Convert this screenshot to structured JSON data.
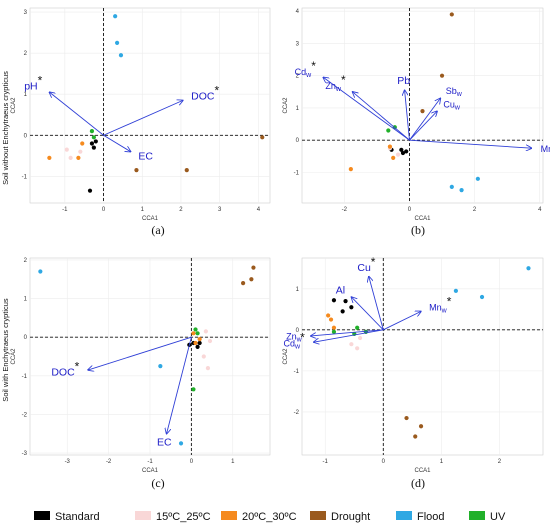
{
  "row_labels": [
    "Soil without Enchytraeus crypticus",
    "Soil with Enchytraeus crypticus"
  ],
  "colors": {
    "Standard": "#000000",
    "15ºC_25ºC": "#f9d7d7",
    "20ºC_30ºC": "#f58a1e",
    "Drought": "#9a5a1e",
    "Flood": "#2fa8e3",
    "UV": "#21b02a",
    "vector": "#2f3fd6"
  },
  "legend": [
    "Standard",
    "15ºC_25ºC",
    "20ºC_30ºC",
    "Drought",
    "Flood",
    "UV"
  ],
  "chart_data": [
    {
      "panel": "(a)",
      "type": "scatter",
      "xlabel": "CCA1",
      "ylabel": "CCA2",
      "xlim": [
        -1.9,
        4.3
      ],
      "ylim": [
        -1.65,
        3.1
      ],
      "xticks": [
        -1,
        0,
        1,
        2,
        3,
        4
      ],
      "yticks": [
        -1,
        0,
        1,
        2,
        3
      ],
      "points": [
        {
          "g": "Standard",
          "x": -0.3,
          "y": -0.2
        },
        {
          "g": "Standard",
          "x": -0.2,
          "y": -0.15
        },
        {
          "g": "Standard",
          "x": -0.25,
          "y": -0.3
        },
        {
          "g": "Standard",
          "x": -0.35,
          "y": -1.35
        },
        {
          "g": "15ºC_25ºC",
          "x": -0.95,
          "y": -0.35
        },
        {
          "g": "15ºC_25ºC",
          "x": -0.85,
          "y": -0.55
        },
        {
          "g": "15ºC_25ºC",
          "x": -0.6,
          "y": -0.4
        },
        {
          "g": "20ºC_30ºC",
          "x": -1.4,
          "y": -0.55
        },
        {
          "g": "20ºC_30ºC",
          "x": -0.65,
          "y": -0.55
        },
        {
          "g": "20ºC_30ºC",
          "x": -0.55,
          "y": -0.2
        },
        {
          "g": "Drought",
          "x": 0.85,
          "y": -0.85
        },
        {
          "g": "Drought",
          "x": 2.15,
          "y": -0.85
        },
        {
          "g": "Drought",
          "x": 4.1,
          "y": -0.05
        },
        {
          "g": "Flood",
          "x": 0.3,
          "y": 2.9
        },
        {
          "g": "Flood",
          "x": 0.35,
          "y": 2.25
        },
        {
          "g": "Flood",
          "x": 0.45,
          "y": 1.95
        },
        {
          "g": "UV",
          "x": -0.3,
          "y": 0.1
        },
        {
          "g": "UV",
          "x": -0.25,
          "y": -0.05
        }
      ],
      "vectors": [
        {
          "label": "pH",
          "sub": "",
          "star": true,
          "x": -1.4,
          "y": 1.05
        },
        {
          "label": "DOC",
          "sub": "",
          "star": true,
          "x": 2.05,
          "y": 0.85
        },
        {
          "label": "EC",
          "sub": "",
          "star": false,
          "x": 0.7,
          "y": -0.4
        }
      ]
    },
    {
      "panel": "(b)",
      "type": "scatter",
      "xlabel": "CCA1",
      "ylabel": "CCA2",
      "xlim": [
        -3.3,
        4.1
      ],
      "ylim": [
        -1.95,
        4.1
      ],
      "xticks": [
        -2,
        0,
        2,
        4
      ],
      "yticks": [
        -1,
        0,
        1,
        2,
        3,
        4
      ],
      "points": [
        {
          "g": "Standard",
          "x": -0.55,
          "y": -0.3
        },
        {
          "g": "Standard",
          "x": -0.25,
          "y": -0.3
        },
        {
          "g": "Standard",
          "x": -0.2,
          "y": -0.4
        },
        {
          "g": "Standard",
          "x": -0.1,
          "y": -0.35
        },
        {
          "g": "15ºC_25ºC",
          "x": -0.6,
          "y": -0.25
        },
        {
          "g": "15ºC_25ºC",
          "x": -0.35,
          "y": -0.45
        },
        {
          "g": "20ºC_30ºC",
          "x": -1.8,
          "y": -0.9
        },
        {
          "g": "20ºC_30ºC",
          "x": -0.6,
          "y": -0.2
        },
        {
          "g": "20ºC_30ºC",
          "x": -0.5,
          "y": -0.55
        },
        {
          "g": "Drought",
          "x": 0.4,
          "y": 0.9
        },
        {
          "g": "Drought",
          "x": 1.0,
          "y": 2.0
        },
        {
          "g": "Drought",
          "x": 1.3,
          "y": 3.9
        },
        {
          "g": "Flood",
          "x": 1.3,
          "y": -1.45
        },
        {
          "g": "Flood",
          "x": 1.6,
          "y": -1.55
        },
        {
          "g": "Flood",
          "x": 2.1,
          "y": -1.2
        },
        {
          "g": "UV",
          "x": -0.65,
          "y": 0.3
        },
        {
          "g": "UV",
          "x": -0.45,
          "y": 0.4
        }
      ],
      "vectors": [
        {
          "label": "Cd",
          "sub": "w",
          "star": true,
          "x": -2.65,
          "y": 1.95
        },
        {
          "label": "Zn",
          "sub": "w",
          "star": true,
          "x": -1.75,
          "y": 1.5
        },
        {
          "label": "Pb",
          "sub": "",
          "star": false,
          "x": -0.15,
          "y": 1.55
        },
        {
          "label": "Sb",
          "sub": "w",
          "star": false,
          "x": 0.95,
          "y": 1.3
        },
        {
          "label": "Cu",
          "sub": "w",
          "star": false,
          "x": 0.85,
          "y": 0.9
        },
        {
          "label": "Mn",
          "sub": "w",
          "star": true,
          "x": 3.75,
          "y": -0.25
        }
      ]
    },
    {
      "panel": "(c)",
      "type": "scatter",
      "xlabel": "CCA1",
      "ylabel": "CCA2",
      "xlim": [
        -3.9,
        1.9
      ],
      "ylim": [
        -3.05,
        2.05
      ],
      "xticks": [
        -3,
        -2,
        -1,
        0,
        1
      ],
      "yticks": [
        -3,
        -2,
        -1,
        0,
        1,
        2
      ],
      "points": [
        {
          "g": "Standard",
          "x": -0.05,
          "y": -0.2
        },
        {
          "g": "Standard",
          "x": 0.05,
          "y": -0.15
        },
        {
          "g": "Standard",
          "x": 0.15,
          "y": -0.25
        },
        {
          "g": "Standard",
          "x": 0.2,
          "y": -0.15
        },
        {
          "g": "15ºC_25ºC",
          "x": 0.35,
          "y": 0.15
        },
        {
          "g": "15ºC_25ºC",
          "x": 0.45,
          "y": -0.1
        },
        {
          "g": "15ºC_25ºC",
          "x": 0.3,
          "y": -0.5
        },
        {
          "g": "15ºC_25ºC",
          "x": 0.4,
          "y": -0.8
        },
        {
          "g": "20ºC_30ºC",
          "x": 0.05,
          "y": 0.1
        },
        {
          "g": "20ºC_30ºC",
          "x": 0.2,
          "y": -0.05
        },
        {
          "g": "20ºC_30ºC",
          "x": 0.1,
          "y": -0.15
        },
        {
          "g": "Drought",
          "x": 1.25,
          "y": 1.4
        },
        {
          "g": "Drought",
          "x": 1.45,
          "y": 1.5
        },
        {
          "g": "Drought",
          "x": 1.5,
          "y": 1.8
        },
        {
          "g": "Flood",
          "x": -3.65,
          "y": 1.7
        },
        {
          "g": "Flood",
          "x": -0.75,
          "y": -0.75
        },
        {
          "g": "Flood",
          "x": -0.25,
          "y": -2.75
        },
        {
          "g": "UV",
          "x": 0.05,
          "y": -1.35
        },
        {
          "g": "UV",
          "x": 0.1,
          "y": 0.2
        },
        {
          "g": "UV",
          "x": 0.15,
          "y": 0.1
        }
      ],
      "vectors": [
        {
          "label": "DOC",
          "sub": "",
          "star": true,
          "x": -2.5,
          "y": -0.85
        },
        {
          "label": "EC",
          "sub": "",
          "star": false,
          "x": -0.6,
          "y": -2.5
        }
      ]
    },
    {
      "panel": "(d)",
      "type": "scatter",
      "xlabel": "CCA1",
      "ylabel": "CCA2",
      "xlim": [
        -1.4,
        2.75
      ],
      "ylim": [
        -3.05,
        1.75
      ],
      "xticks": [
        -1,
        0,
        1,
        2
      ],
      "yticks": [
        -2,
        -1,
        0,
        1
      ],
      "points": [
        {
          "g": "Standard",
          "x": -0.85,
          "y": 0.72
        },
        {
          "g": "Standard",
          "x": -0.65,
          "y": 0.7
        },
        {
          "g": "Standard",
          "x": -0.55,
          "y": 0.55
        },
        {
          "g": "Standard",
          "x": -0.7,
          "y": 0.45
        },
        {
          "g": "15ºC_25ºC",
          "x": -0.55,
          "y": -0.35
        },
        {
          "g": "15ºC_25ºC",
          "x": -0.4,
          "y": -0.2
        },
        {
          "g": "15ºC_25ºC",
          "x": -0.45,
          "y": -0.45
        },
        {
          "g": "20ºC_30ºC",
          "x": -0.95,
          "y": 0.35
        },
        {
          "g": "20ºC_30ºC",
          "x": -0.9,
          "y": 0.25
        },
        {
          "g": "20ºC_30ºC",
          "x": -0.85,
          "y": 0.05
        },
        {
          "g": "Drought",
          "x": 0.4,
          "y": -2.15
        },
        {
          "g": "Drought",
          "x": 0.55,
          "y": -2.6
        },
        {
          "g": "Drought",
          "x": 0.65,
          "y": -2.35
        },
        {
          "g": "Flood",
          "x": 1.25,
          "y": 0.95
        },
        {
          "g": "Flood",
          "x": 1.7,
          "y": 0.8
        },
        {
          "g": "Flood",
          "x": 2.5,
          "y": 1.5
        },
        {
          "g": "UV",
          "x": -0.45,
          "y": 0.05
        },
        {
          "g": "UV",
          "x": -0.85,
          "y": -0.05
        },
        {
          "g": "UV",
          "x": -0.5,
          "y": -0.1
        },
        {
          "g": "UV",
          "x": -0.3,
          "y": -0.05
        }
      ],
      "vectors": [
        {
          "label": "Cu",
          "sub": "",
          "star": true,
          "x": -0.25,
          "y": 1.3
        },
        {
          "label": "Al",
          "sub": "",
          "star": false,
          "x": -0.55,
          "y": 0.8
        },
        {
          "label": "Mn",
          "sub": "w",
          "star": true,
          "x": 0.65,
          "y": 0.45
        },
        {
          "label": "Zn",
          "sub": "w",
          "star": false,
          "x": -1.25,
          "y": -0.15
        },
        {
          "label": "Cd",
          "sub": "w",
          "star": true,
          "x": -1.2,
          "y": -0.3
        }
      ]
    }
  ]
}
